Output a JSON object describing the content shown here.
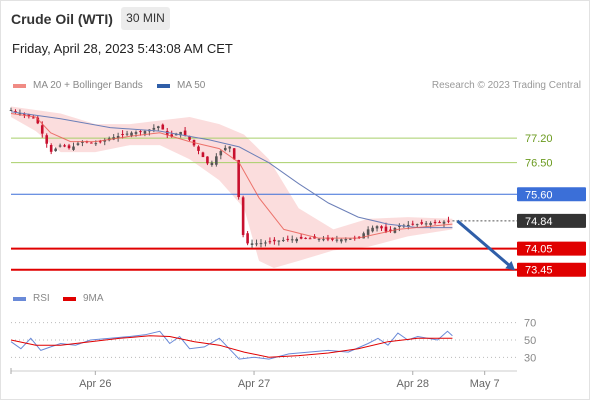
{
  "header": {
    "instrument": "Crude Oil (WTI)",
    "timeframe": "30 MIN",
    "datetime": "Friday, April 28, 2023 5:43:08 AM CET"
  },
  "legend": {
    "ma20_label": "MA 20 + Bollinger Bands",
    "ma50_label": "MA 50",
    "credit": "Research © 2023 Trading Central",
    "rsi_label": "RSI",
    "rsi_ma_label": "9MA"
  },
  "colors": {
    "ma20": "#e8574f",
    "bollinger_fill": "#fbd9d9",
    "ma50": "#6b7fb8",
    "resistance_green": "#a8cf6a",
    "blue_level": "#3b6fd8",
    "red_level": "#e00000",
    "price_tag": "#333333",
    "arrow": "#2f5ea8",
    "rsi": "#6a8ad8",
    "rsi_ma": "#e00000",
    "candle_up": "#555555",
    "candle_down": "#c8102e"
  },
  "chart_data": {
    "type": "line",
    "series_type": "candlestick",
    "y_unit": "USD",
    "ylim": [
      73.1,
      78.2
    ],
    "levels": [
      {
        "value": 77.2,
        "label": "77.20",
        "style": "green-line"
      },
      {
        "value": 76.5,
        "label": "76.50",
        "style": "green-line"
      },
      {
        "value": 75.6,
        "label": "75.60",
        "style": "blue-tag"
      },
      {
        "value": 74.84,
        "label": "74.84",
        "style": "current-price-tag"
      },
      {
        "value": 74.05,
        "label": "74.05",
        "style": "red-tag"
      },
      {
        "value": 73.45,
        "label": "73.45",
        "style": "red-tag"
      }
    ],
    "x_ticks": [
      "Apr 26",
      "Apr 27",
      "Apr 28",
      "May 7"
    ],
    "x_tick_positions": [
      0.17,
      0.49,
      0.81,
      0.955
    ],
    "price_path": [
      {
        "t": 0.0,
        "close": 78.0
      },
      {
        "t": 0.02,
        "close": 77.9
      },
      {
        "t": 0.05,
        "close": 77.75
      },
      {
        "t": 0.07,
        "close": 77.1
      },
      {
        "t": 0.08,
        "close": 76.8
      },
      {
        "t": 0.1,
        "close": 77.0
      },
      {
        "t": 0.12,
        "close": 76.9
      },
      {
        "t": 0.14,
        "close": 77.1
      },
      {
        "t": 0.17,
        "close": 77.05
      },
      {
        "t": 0.2,
        "close": 77.2
      },
      {
        "t": 0.24,
        "close": 77.35
      },
      {
        "t": 0.27,
        "close": 77.4
      },
      {
        "t": 0.3,
        "close": 77.55
      },
      {
        "t": 0.32,
        "close": 77.2
      },
      {
        "t": 0.34,
        "close": 77.4
      },
      {
        "t": 0.36,
        "close": 77.15
      },
      {
        "t": 0.38,
        "close": 76.8
      },
      {
        "t": 0.4,
        "close": 76.4
      },
      {
        "t": 0.42,
        "close": 76.8
      },
      {
        "t": 0.44,
        "close": 77.0
      },
      {
        "t": 0.45,
        "close": 76.6
      },
      {
        "t": 0.46,
        "close": 75.4
      },
      {
        "t": 0.47,
        "close": 74.2
      },
      {
        "t": 0.5,
        "close": 74.2
      },
      {
        "t": 0.55,
        "close": 74.3
      },
      {
        "t": 0.6,
        "close": 74.35
      },
      {
        "t": 0.65,
        "close": 74.3
      },
      {
        "t": 0.7,
        "close": 74.35
      },
      {
        "t": 0.72,
        "close": 74.6
      },
      {
        "t": 0.74,
        "close": 74.7
      },
      {
        "t": 0.76,
        "close": 74.5
      },
      {
        "t": 0.78,
        "close": 74.7
      },
      {
        "t": 0.82,
        "close": 74.75
      },
      {
        "t": 0.86,
        "close": 74.8
      },
      {
        "t": 0.89,
        "close": 74.84
      }
    ],
    "ma20": [
      {
        "t": 0.0,
        "v": 77.9
      },
      {
        "t": 0.05,
        "v": 77.8
      },
      {
        "t": 0.08,
        "v": 77.35
      },
      {
        "t": 0.12,
        "v": 77.1
      },
      {
        "t": 0.17,
        "v": 77.1
      },
      {
        "t": 0.24,
        "v": 77.25
      },
      {
        "t": 0.3,
        "v": 77.35
      },
      {
        "t": 0.36,
        "v": 77.1
      },
      {
        "t": 0.42,
        "v": 76.9
      },
      {
        "t": 0.46,
        "v": 76.5
      },
      {
        "t": 0.5,
        "v": 75.5
      },
      {
        "t": 0.55,
        "v": 74.6
      },
      {
        "t": 0.62,
        "v": 74.35
      },
      {
        "t": 0.7,
        "v": 74.35
      },
      {
        "t": 0.78,
        "v": 74.6
      },
      {
        "t": 0.89,
        "v": 74.75
      }
    ],
    "bollinger_upper": [
      {
        "t": 0.0,
        "v": 78.1
      },
      {
        "t": 0.05,
        "v": 78.0
      },
      {
        "t": 0.1,
        "v": 77.9
      },
      {
        "t": 0.17,
        "v": 77.6
      },
      {
        "t": 0.24,
        "v": 77.6
      },
      {
        "t": 0.3,
        "v": 77.7
      },
      {
        "t": 0.36,
        "v": 77.8
      },
      {
        "t": 0.42,
        "v": 77.6
      },
      {
        "t": 0.47,
        "v": 77.3
      },
      {
        "t": 0.52,
        "v": 76.6
      },
      {
        "t": 0.58,
        "v": 75.2
      },
      {
        "t": 0.65,
        "v": 74.6
      },
      {
        "t": 0.72,
        "v": 74.9
      },
      {
        "t": 0.8,
        "v": 74.95
      },
      {
        "t": 0.89,
        "v": 74.9
      }
    ],
    "bollinger_lower": [
      {
        "t": 0.0,
        "v": 77.8
      },
      {
        "t": 0.05,
        "v": 77.4
      },
      {
        "t": 0.1,
        "v": 76.8
      },
      {
        "t": 0.17,
        "v": 76.8
      },
      {
        "t": 0.24,
        "v": 77.0
      },
      {
        "t": 0.3,
        "v": 77.0
      },
      {
        "t": 0.36,
        "v": 76.6
      },
      {
        "t": 0.42,
        "v": 76.0
      },
      {
        "t": 0.47,
        "v": 75.2
      },
      {
        "t": 0.5,
        "v": 73.7
      },
      {
        "t": 0.53,
        "v": 73.5
      },
      {
        "t": 0.58,
        "v": 73.7
      },
      {
        "t": 0.65,
        "v": 74.0
      },
      {
        "t": 0.72,
        "v": 74.1
      },
      {
        "t": 0.8,
        "v": 74.4
      },
      {
        "t": 0.89,
        "v": 74.6
      }
    ],
    "ma50": [
      {
        "t": 0.0,
        "v": 77.95
      },
      {
        "t": 0.1,
        "v": 77.75
      },
      {
        "t": 0.2,
        "v": 77.5
      },
      {
        "t": 0.3,
        "v": 77.4
      },
      {
        "t": 0.4,
        "v": 77.15
      },
      {
        "t": 0.46,
        "v": 76.95
      },
      {
        "t": 0.52,
        "v": 76.5
      },
      {
        "t": 0.58,
        "v": 75.9
      },
      {
        "t": 0.64,
        "v": 75.35
      },
      {
        "t": 0.7,
        "v": 74.95
      },
      {
        "t": 0.76,
        "v": 74.75
      },
      {
        "t": 0.82,
        "v": 74.65
      },
      {
        "t": 0.89,
        "v": 74.65
      }
    ],
    "forecast_arrow": {
      "from": 74.84,
      "to": 73.45
    },
    "rsi_panel": {
      "ylim": [
        20,
        80
      ],
      "ticks": [
        70,
        50,
        30
      ],
      "rsi": [
        {
          "t": 0.0,
          "v": 48
        },
        {
          "t": 0.02,
          "v": 40
        },
        {
          "t": 0.04,
          "v": 52
        },
        {
          "t": 0.06,
          "v": 38
        },
        {
          "t": 0.08,
          "v": 42
        },
        {
          "t": 0.1,
          "v": 46
        },
        {
          "t": 0.13,
          "v": 44
        },
        {
          "t": 0.16,
          "v": 50
        },
        {
          "t": 0.2,
          "v": 52
        },
        {
          "t": 0.24,
          "v": 54
        },
        {
          "t": 0.27,
          "v": 56
        },
        {
          "t": 0.3,
          "v": 60
        },
        {
          "t": 0.32,
          "v": 46
        },
        {
          "t": 0.34,
          "v": 54
        },
        {
          "t": 0.36,
          "v": 40
        },
        {
          "t": 0.39,
          "v": 42
        },
        {
          "t": 0.42,
          "v": 52
        },
        {
          "t": 0.44,
          "v": 40
        },
        {
          "t": 0.46,
          "v": 28
        },
        {
          "t": 0.49,
          "v": 30
        },
        {
          "t": 0.52,
          "v": 28
        },
        {
          "t": 0.56,
          "v": 34
        },
        {
          "t": 0.6,
          "v": 36
        },
        {
          "t": 0.64,
          "v": 38
        },
        {
          "t": 0.68,
          "v": 36
        },
        {
          "t": 0.72,
          "v": 46
        },
        {
          "t": 0.74,
          "v": 52
        },
        {
          "t": 0.76,
          "v": 44
        },
        {
          "t": 0.78,
          "v": 58
        },
        {
          "t": 0.8,
          "v": 50
        },
        {
          "t": 0.82,
          "v": 54
        },
        {
          "t": 0.86,
          "v": 50
        },
        {
          "t": 0.88,
          "v": 60
        },
        {
          "t": 0.89,
          "v": 55
        }
      ],
      "rsi_ma": [
        {
          "t": 0.0,
          "v": 50
        },
        {
          "t": 0.05,
          "v": 44
        },
        {
          "t": 0.1,
          "v": 44
        },
        {
          "t": 0.16,
          "v": 48
        },
        {
          "t": 0.22,
          "v": 52
        },
        {
          "t": 0.28,
          "v": 55
        },
        {
          "t": 0.32,
          "v": 54
        },
        {
          "t": 0.37,
          "v": 48
        },
        {
          "t": 0.42,
          "v": 44
        },
        {
          "t": 0.47,
          "v": 36
        },
        {
          "t": 0.52,
          "v": 30
        },
        {
          "t": 0.58,
          "v": 32
        },
        {
          "t": 0.64,
          "v": 35
        },
        {
          "t": 0.7,
          "v": 40
        },
        {
          "t": 0.76,
          "v": 48
        },
        {
          "t": 0.82,
          "v": 52
        },
        {
          "t": 0.89,
          "v": 52
        }
      ]
    }
  }
}
